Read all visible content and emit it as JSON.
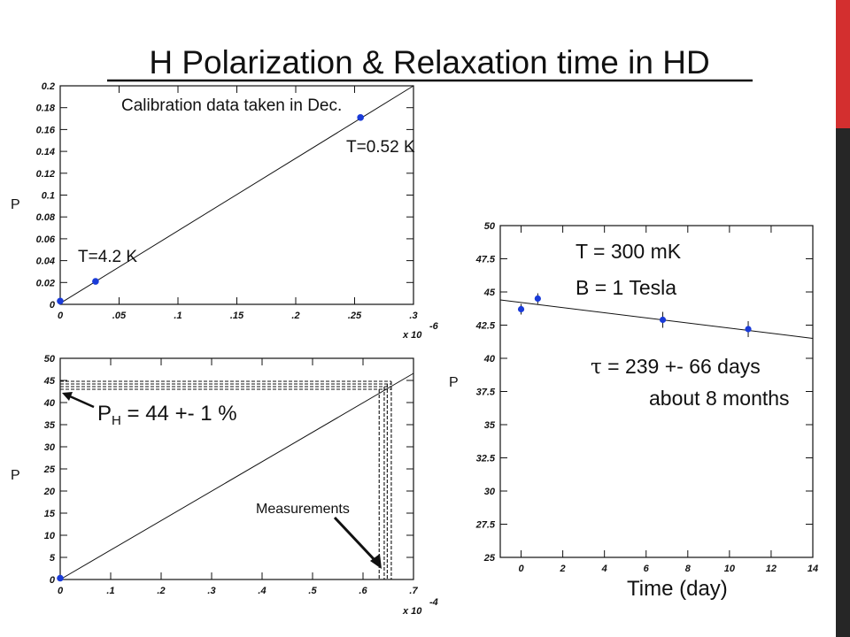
{
  "slide": {
    "title": "H Polarization & Relaxation time in HD",
    "accent_colors": {
      "sidebar_dark": "#262626",
      "sidebar_red": "#d32f2f",
      "marker_blue": "#1a3bd8"
    }
  },
  "chart_data": [
    {
      "id": "calibration",
      "type": "scatter",
      "x_multiplier": "x 10",
      "x_exponent": "-6",
      "ylabel": "P",
      "xlim": [
        0,
        0.3
      ],
      "ylim": [
        0,
        0.2
      ],
      "x_ticks": [
        0,
        0.05,
        0.1,
        0.15,
        0.2,
        0.25,
        0.3
      ],
      "y_ticks": [
        0,
        0.02,
        0.04,
        0.06,
        0.08,
        0.1,
        0.12,
        0.14,
        0.16,
        0.18,
        0.2
      ],
      "points": [
        {
          "x": 0,
          "y": 0.003
        },
        {
          "x": 0.03,
          "y": 0.021
        },
        {
          "x": 0.255,
          "y": 0.171
        }
      ],
      "fit_line": [
        [
          0,
          0.001
        ],
        [
          0.3,
          0.2
        ]
      ],
      "annotations": [
        "Calibration data taken in Dec.",
        "T=0.52 K",
        "T=4.2 K"
      ]
    },
    {
      "id": "measurement",
      "type": "line",
      "x_multiplier": "x 10",
      "x_exponent": "-4",
      "ylabel": "P",
      "xlim": [
        0,
        0.7
      ],
      "ylim": [
        0,
        50
      ],
      "x_ticks": [
        0,
        0.1,
        0.2,
        0.3,
        0.4,
        0.5,
        0.6,
        0.7
      ],
      "y_ticks": [
        0,
        5,
        10,
        15,
        20,
        25,
        30,
        35,
        40,
        45,
        50
      ],
      "points": [
        {
          "x": 0,
          "y": 0.3
        }
      ],
      "fit_line": [
        [
          0,
          0
        ],
        [
          0.7,
          46.6
        ]
      ],
      "measurement_x": [
        0.632,
        0.642,
        0.648,
        0.656
      ],
      "measurement_y": [
        43,
        43.6,
        44.2,
        44.8
      ],
      "annotations": {
        "result_main": "P",
        "result_sub": "H",
        "result_value": " = 44 +- 1 %",
        "measurements": "Measurements"
      }
    },
    {
      "id": "relaxation",
      "type": "scatter",
      "xlabel": "Time (day)",
      "ylabel": "P",
      "xlim": [
        -1,
        14
      ],
      "ylim": [
        25,
        50
      ],
      "x_ticks": [
        0,
        2,
        4,
        6,
        8,
        10,
        12,
        14
      ],
      "y_ticks": [
        25,
        27.5,
        30,
        32.5,
        35,
        37.5,
        40,
        42.5,
        45,
        47.5,
        50
      ],
      "points": [
        {
          "x": 0,
          "y": 43.7,
          "err": 0.4
        },
        {
          "x": 0.8,
          "y": 44.5,
          "err": 0.4
        },
        {
          "x": 6.8,
          "y": 42.9,
          "err": 0.6
        },
        {
          "x": 10.9,
          "y": 42.2,
          "err": 0.6
        }
      ],
      "fit_line": [
        [
          -1,
          44.4
        ],
        [
          14,
          41.5
        ]
      ],
      "annotations": {
        "temperature": "T = 300 mK",
        "field": "B = 1 Tesla",
        "tau_symbol": "τ",
        "tau_value": " =  239 +- 66 days",
        "tau_note": "about 8 months"
      }
    }
  ]
}
